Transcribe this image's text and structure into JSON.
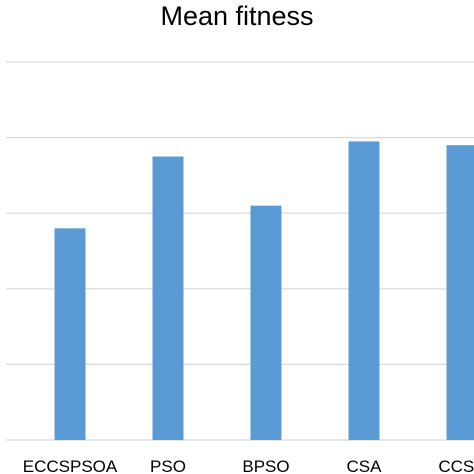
{
  "chart_data": {
    "type": "bar",
    "title": "Mean fitness",
    "categories": [
      "ECCSPSOA",
      "PSO",
      "BPSO",
      "CSA",
      "CCSA"
    ],
    "values": [
      5.8,
      6.75,
      6.1,
      6.95,
      6.9
    ],
    "ylim": [
      3,
      8
    ],
    "grid": true,
    "bar_color": "#5b9bd5",
    "grid_color": "#d9d9d9"
  }
}
